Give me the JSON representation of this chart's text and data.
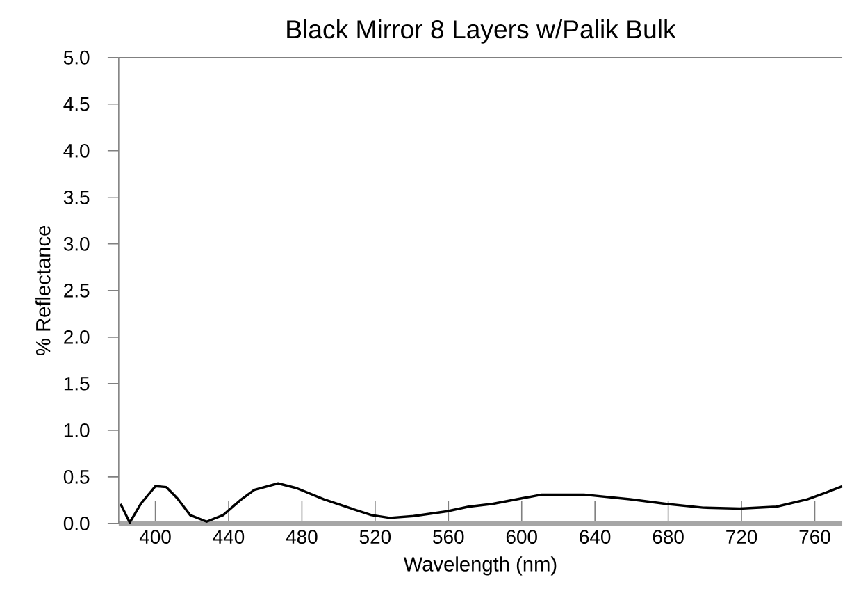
{
  "chart_data": {
    "type": "line",
    "title": "Black Mirror 8 Layers w/Palik Bulk",
    "xlabel": "Wavelength (nm)",
    "ylabel": "% Reflectance",
    "xlim": [
      380,
      775
    ],
    "ylim": [
      0,
      5
    ],
    "xticks": [
      400,
      440,
      480,
      520,
      560,
      600,
      640,
      680,
      720,
      760
    ],
    "yticks": [
      {
        "value": 0,
        "label": "0.0"
      },
      {
        "value": 0.5,
        "label": "0.5"
      },
      {
        "value": 1,
        "label": "1.0"
      },
      {
        "value": 1.5,
        "label": "1.5"
      },
      {
        "value": 2,
        "label": "2.0"
      },
      {
        "value": 2.5,
        "label": "2.5"
      },
      {
        "value": 3,
        "label": "3.0"
      },
      {
        "value": 3.5,
        "label": "3.5"
      },
      {
        "value": 4,
        "label": "4.0"
      },
      {
        "value": 4.5,
        "label": "4.5"
      },
      {
        "value": 5,
        "label": "5.0"
      }
    ],
    "grid": false,
    "marker": "none",
    "line_style": "solid",
    "series": [
      {
        "color": "#000000",
        "x": [
          381,
          386,
          392,
          400,
          406,
          412,
          419,
          428,
          437,
          447,
          454,
          467,
          477,
          492,
          507,
          518,
          528,
          541,
          559,
          571,
          584,
          600,
          611,
          634,
          659,
          679,
          699,
          719,
          739,
          756,
          766,
          775
        ],
        "values": [
          0.21,
          0.01,
          0.21,
          0.4,
          0.39,
          0.27,
          0.09,
          0.02,
          0.09,
          0.26,
          0.36,
          0.43,
          0.38,
          0.26,
          0.16,
          0.09,
          0.06,
          0.08,
          0.13,
          0.18,
          0.21,
          0.27,
          0.31,
          0.31,
          0.26,
          0.21,
          0.17,
          0.16,
          0.18,
          0.26,
          0.33,
          0.4
        ]
      }
    ]
  }
}
